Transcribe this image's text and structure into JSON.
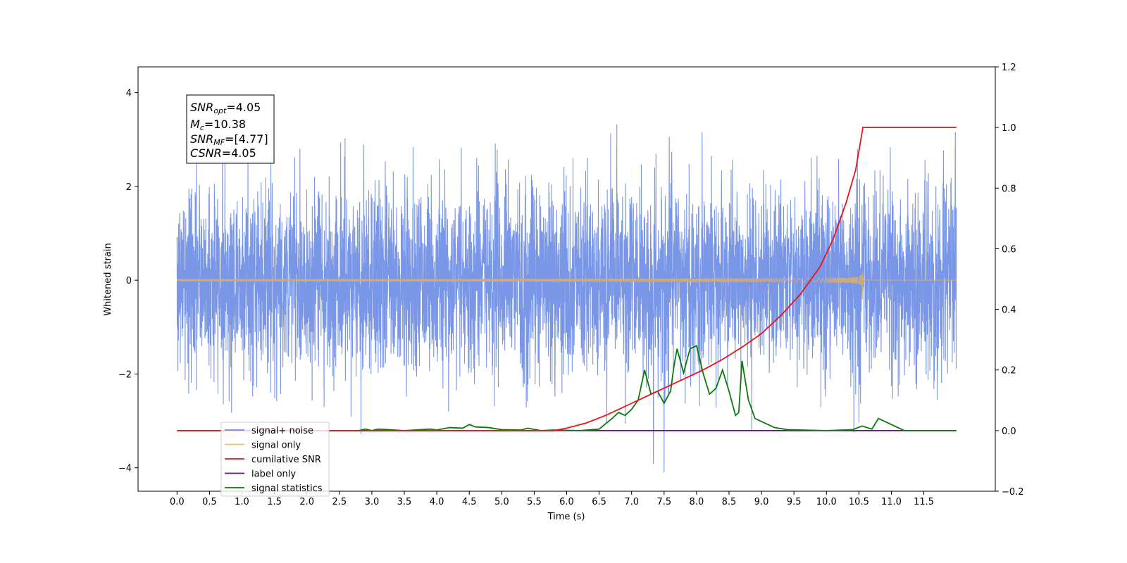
{
  "chart_data": {
    "type": "line",
    "title": "",
    "xlabel": "Time (s)",
    "ylabel": "Whitened strain",
    "y2label": "",
    "xlim": [
      -0.6,
      12.6
    ],
    "ylim": [
      -4.5,
      4.55
    ],
    "y2lim": [
      -0.2,
      1.2
    ],
    "xticks": [
      "0.0",
      "0.5",
      "1.0",
      "1.5",
      "2.0",
      "2.5",
      "3.0",
      "3.5",
      "4.0",
      "4.5",
      "5.0",
      "5.5",
      "6.0",
      "6.5",
      "7.0",
      "7.5",
      "8.0",
      "8.5",
      "9.0",
      "9.5",
      "10.0",
      "10.5",
      "11.0",
      "11.5"
    ],
    "yticks": [
      "4",
      "2",
      "0",
      "−2",
      "−4"
    ],
    "y2ticks": [
      "1.2",
      "1.0",
      "0.8",
      "0.6",
      "0.4",
      "0.2",
      "0.0",
      "−0.2"
    ],
    "annotation": {
      "snr_opt": {
        "var": "SNR",
        "sub": "opt",
        "text": "=4.05"
      },
      "mc": {
        "var": "M",
        "sub": "c",
        "text": "=10.38"
      },
      "snr_mf": {
        "var": "SNR",
        "sub": "MF",
        "text": "=[4.77]"
      },
      "csnr": {
        "var": "CSNR",
        "text": "=4.05"
      }
    },
    "series": [
      {
        "name": "signal+ noise",
        "color": "#6b8be3",
        "axis": "left",
        "kind": "noise",
        "x_range": [
          0.0,
          12.0
        ],
        "mean": 0.0,
        "std": 1.0,
        "min": -4.1,
        "max": 4.15
      },
      {
        "name": "signal only",
        "color": "#f5be5b",
        "axis": "left",
        "kind": "chirp",
        "x_range": [
          0.0,
          10.55
        ],
        "peak_time": 10.55,
        "peak_amplitude": 0.65,
        "ringdown_end": 10.6
      },
      {
        "name": "cumilative SNR",
        "color": "#e8141a",
        "axis": "right",
        "x": [
          0.0,
          5.8,
          6.0,
          6.3,
          6.6,
          6.9,
          7.2,
          7.5,
          7.8,
          8.1,
          8.4,
          8.7,
          9.0,
          9.3,
          9.6,
          9.9,
          10.1,
          10.3,
          10.45,
          10.55,
          10.56,
          12.0
        ],
        "y": [
          0.0,
          0.0,
          0.008,
          0.025,
          0.05,
          0.08,
          0.11,
          0.14,
          0.17,
          0.2,
          0.235,
          0.275,
          0.32,
          0.38,
          0.45,
          0.54,
          0.63,
          0.75,
          0.86,
          0.985,
          1.0,
          1.0
        ]
      },
      {
        "name": "label only",
        "color": "#6a0d82",
        "axis": "right",
        "x": [
          0.0,
          12.0
        ],
        "y": [
          0.0,
          0.0
        ]
      },
      {
        "name": "signal statistics",
        "color": "#0a7a0a",
        "axis": "right",
        "x": [
          0.0,
          2.8,
          2.9,
          3.0,
          3.1,
          3.5,
          3.9,
          4.0,
          4.2,
          4.4,
          4.5,
          4.6,
          4.8,
          5.0,
          5.3,
          5.4,
          5.6,
          5.8,
          6.2,
          6.5,
          6.7,
          6.8,
          6.9,
          7.0,
          7.1,
          7.2,
          7.3,
          7.4,
          7.5,
          7.6,
          7.65,
          7.7,
          7.8,
          7.9,
          8.0,
          8.1,
          8.2,
          8.3,
          8.4,
          8.5,
          8.6,
          8.65,
          8.7,
          8.8,
          8.9,
          9.0,
          9.2,
          9.4,
          10.0,
          10.4,
          10.55,
          10.7,
          10.8,
          11.0,
          11.2,
          12.0
        ],
        "y": [
          0.0,
          0.0,
          0.005,
          0.0,
          0.005,
          0.0,
          0.005,
          0.002,
          0.01,
          0.008,
          0.02,
          0.012,
          0.01,
          0.003,
          0.002,
          0.008,
          0.0,
          0.002,
          0.0,
          0.005,
          0.04,
          0.06,
          0.05,
          0.07,
          0.1,
          0.2,
          0.12,
          0.13,
          0.09,
          0.13,
          0.21,
          0.27,
          0.19,
          0.27,
          0.28,
          0.19,
          0.12,
          0.14,
          0.2,
          0.13,
          0.05,
          0.06,
          0.23,
          0.1,
          0.04,
          0.03,
          0.01,
          0.003,
          0.0,
          0.003,
          0.015,
          0.005,
          0.04,
          0.02,
          0.0,
          0.0
        ]
      }
    ],
    "legend": {
      "placement": "lower-left",
      "entries": [
        "signal+ noise",
        "signal only",
        "cumilative SNR",
        "label only",
        "signal statistics"
      ]
    },
    "grid": false
  }
}
